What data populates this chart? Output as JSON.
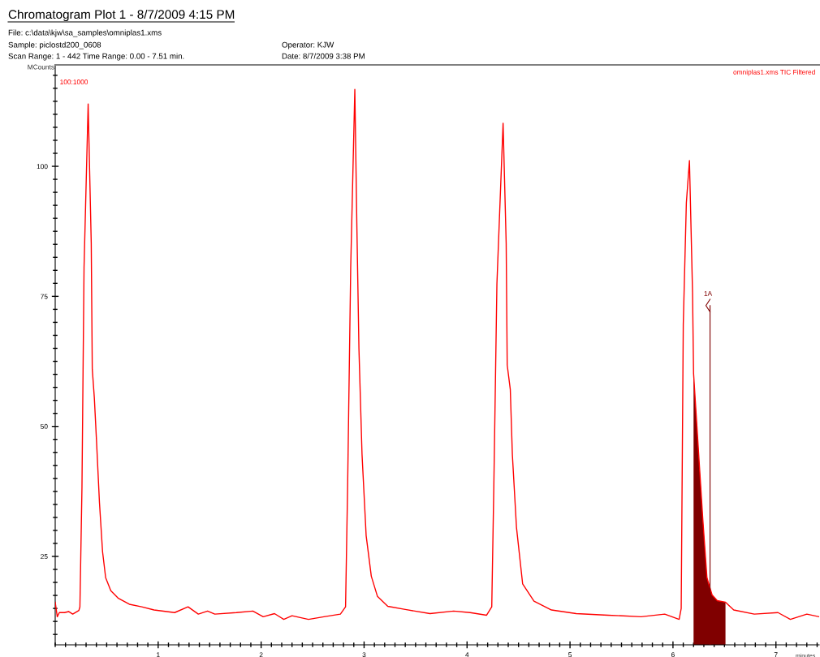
{
  "chart_data": {
    "type": "line",
    "title": "Chromatogram Plot 1 - 8/7/2009 4:15 PM",
    "annotations": [
      "File: c:\\data\\kjw\\sa_samples\\omniplas1.xms",
      "Sample: piclostd200_0608",
      "Operator: KJW",
      "Scan Range: 1 - 442 Time Range: 0.00 - 7.51 min.",
      "Date: 8/7/2009 3:38 PM",
      "100:1000"
    ],
    "ref_lines": [
      {
        "axis": "x",
        "value": 6.36,
        "label": "1A",
        "color": "#800000",
        "line_style": "solid"
      }
    ],
    "xlabel": "minutes",
    "ylabel": "MCounts",
    "xlim": [
      0,
      7.42
    ],
    "xticks": [
      1,
      2,
      3,
      4,
      5,
      6,
      7
    ],
    "ylim": [
      8,
      119.5
    ],
    "yticks": [
      25,
      50,
      75,
      100
    ],
    "grid": false,
    "legend": "top right",
    "marker": "none",
    "line_style": "solid",
    "series": [
      {
        "name": "omniplas1.xms TIC Filtered",
        "color": "#ff0000",
        "x": [
          0,
          0.02,
          0.04,
          0.09,
          0.13,
          0.17,
          0.23,
          0.24,
          0.26,
          0.28,
          0.32,
          0.35,
          0.36,
          0.38,
          0.4,
          0.43,
          0.46,
          0.49,
          0.54,
          0.61,
          0.72,
          0.84,
          0.96,
          1.16,
          1.29,
          1.39,
          1.48,
          1.55,
          1.76,
          1.92,
          2.02,
          2.13,
          2.22,
          2.3,
          2.46,
          2.61,
          2.77,
          2.82,
          2.84,
          2.87,
          2.91,
          2.93,
          2.95,
          2.98,
          3.02,
          3.07,
          3.13,
          3.23,
          3.4,
          3.64,
          3.87,
          4.03,
          4.19,
          4.24,
          4.26,
          4.29,
          4.35,
          4.38,
          4.39,
          4.42,
          4.44,
          4.48,
          4.54,
          4.65,
          4.82,
          5.06,
          5.37,
          5.69,
          5.92,
          6.06,
          6.08,
          6.1,
          6.13,
          6.16,
          6.19,
          6.2,
          6.24,
          6.29,
          6.33,
          6.38,
          6.43,
          6.51,
          6.59,
          6.79,
          7.02,
          7.14,
          7.3,
          7.42
        ],
        "values": [
          16.2,
          13.4,
          14.2,
          14.2,
          14.4,
          13.9,
          14.6,
          15.3,
          38.4,
          80.5,
          112.0,
          85.2,
          61.0,
          55.5,
          47.7,
          35.3,
          25.9,
          20.9,
          18.4,
          17.0,
          15.8,
          15.3,
          14.7,
          14.2,
          15.3,
          13.9,
          14.5,
          13.9,
          14.2,
          14.5,
          13.4,
          14.0,
          12.9,
          13.6,
          12.9,
          13.4,
          13.9,
          15.3,
          38.4,
          80.5,
          114.8,
          88.3,
          64.9,
          44.6,
          29.0,
          21.2,
          17.3,
          15.4,
          14.8,
          14.0,
          14.5,
          14.2,
          13.7,
          15.3,
          38.4,
          77.4,
          108.3,
          85.2,
          61.8,
          57.1,
          44.6,
          30.6,
          19.7,
          16.4,
          14.7,
          14.0,
          13.7,
          13.4,
          13.9,
          12.9,
          15.0,
          69.6,
          93.0,
          101.1,
          75.8,
          60.2,
          47.7,
          32.1,
          20.9,
          17.6,
          16.5,
          16.2,
          14.7,
          13.9,
          14.2,
          12.9,
          13.9,
          13.4
        ]
      },
      {
        "type": "area",
        "color": "#800000",
        "x": [
          6.2,
          6.24,
          6.29,
          6.33,
          6.38,
          6.43,
          6.51
        ],
        "values": [
          60.2,
          47.7,
          32.1,
          20.9,
          17.6,
          16.5,
          16.2
        ]
      }
    ]
  }
}
